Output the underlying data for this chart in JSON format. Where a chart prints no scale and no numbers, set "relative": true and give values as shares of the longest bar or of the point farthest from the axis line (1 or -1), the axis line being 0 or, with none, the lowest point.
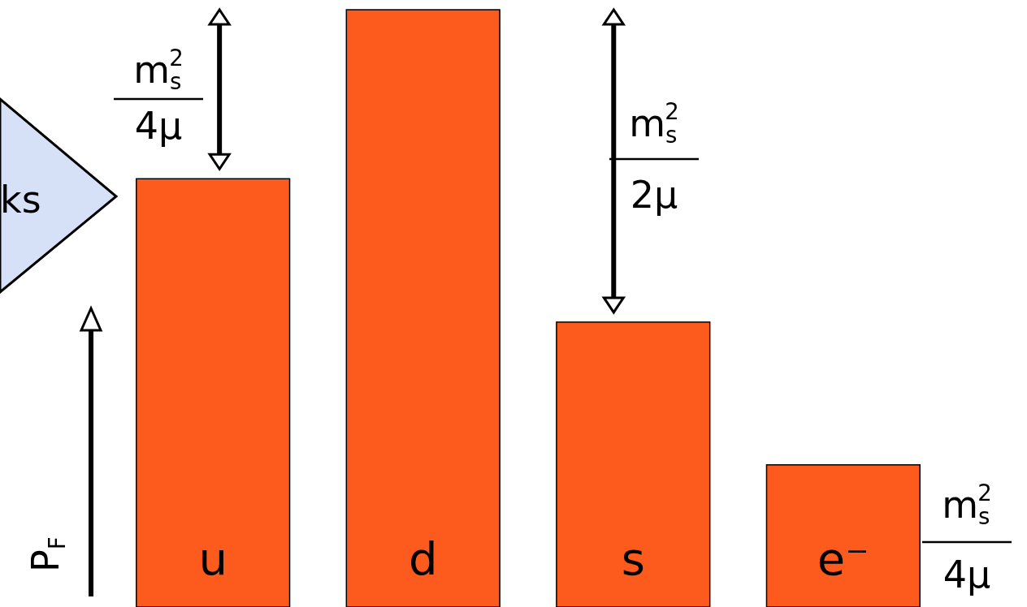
{
  "chart_data": {
    "type": "bar",
    "relative": true,
    "ylabel": "P$_{F}$",
    "categories": [
      "u",
      "d",
      "s",
      "e⁻"
    ],
    "values": [
      0.717,
      1,
      0.477,
      0.238
    ],
    "color": "#fd5a1e",
    "annotations": [
      "ks",
      "m$_{s}$$^{2}$",
      "4μ",
      "m$_{s}$$^{2}$",
      "2μ",
      "m$_{s}$$^{2}$",
      "4μ"
    ]
  }
}
